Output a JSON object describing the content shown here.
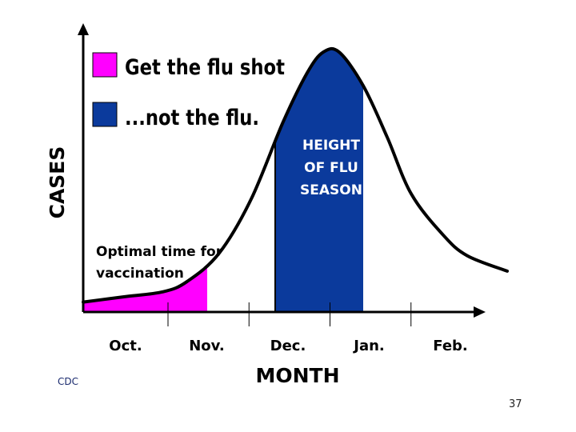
{
  "chart_data": {
    "type": "area",
    "xlabel": "MONTH",
    "ylabel": "CASES",
    "categories": [
      "Oct.",
      "Nov.",
      "Dec.",
      "Jan.",
      "Feb."
    ],
    "x_range": [
      0,
      5
    ],
    "y_range": [
      0,
      100
    ],
    "curve": [
      [
        0,
        2
      ],
      [
        0.5,
        4
      ],
      [
        1,
        6
      ],
      [
        1.3,
        10
      ],
      [
        1.7,
        21
      ],
      [
        2.1,
        42
      ],
      [
        2.5,
        72
      ],
      [
        2.8,
        91
      ],
      [
        3.0,
        99
      ],
      [
        3.2,
        99
      ],
      [
        3.5,
        86
      ],
      [
        3.8,
        66
      ],
      [
        4.1,
        44
      ],
      [
        4.5,
        28
      ],
      [
        4.8,
        20
      ],
      [
        5.3,
        14
      ]
    ],
    "highlight_regions": [
      {
        "label": "Optimal time for vaccination",
        "x_start": 0,
        "x_end": 1.55,
        "color": "#ff00ff"
      },
      {
        "label": "HEIGHT OF FLU SEASON",
        "x_start": 2.4,
        "x_end": 3.5,
        "color": "#0b3a9c"
      }
    ],
    "legend": [
      {
        "label": "Get the flu shot",
        "color": "#ff00ff"
      },
      {
        "label": "...not the flu.",
        "color": "#0b3a9c"
      }
    ],
    "legend_position": "top-left",
    "annotations": {
      "vaccination": [
        "Optimal time for",
        "vaccination"
      ],
      "peak": [
        "HEIGHT",
        "OF FLU",
        "SEASON"
      ]
    },
    "grid": false
  },
  "footer": {
    "credit": "CDC",
    "page_number": "37"
  }
}
